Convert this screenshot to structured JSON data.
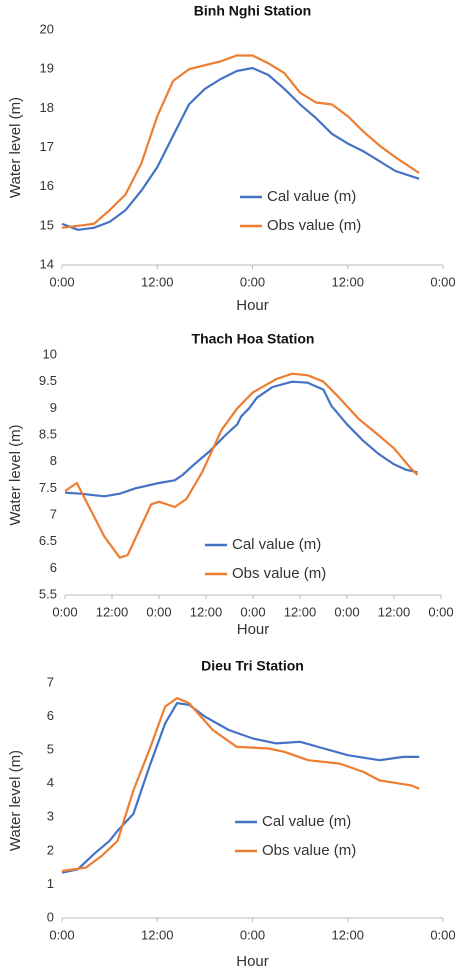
{
  "chart_data": [
    {
      "type": "line",
      "title": "Binh Nghi Station",
      "xlabel": "Hour",
      "ylabel": "Water level (m)",
      "xlim": [
        0,
        48
      ],
      "xticks": [
        {
          "value": 0,
          "label": "0:00"
        },
        {
          "value": 12,
          "label": "12:00"
        },
        {
          "value": 24,
          "label": "0:00"
        },
        {
          "value": 36,
          "label": "12:00"
        },
        {
          "value": 48,
          "label": "0:00"
        }
      ],
      "ylim": [
        14,
        20
      ],
      "yticks": [
        14,
        15,
        16,
        17,
        18,
        19,
        20
      ],
      "series": [
        {
          "name": "Cal value (m)",
          "color": "#4472c4",
          "x": [
            0,
            2,
            4,
            6,
            8,
            10,
            12,
            14,
            16,
            18,
            20,
            22,
            24,
            26,
            28,
            30,
            32,
            34,
            36,
            38,
            40,
            42,
            45
          ],
          "values": [
            15.05,
            14.9,
            14.95,
            15.1,
            15.4,
            15.9,
            16.5,
            17.3,
            18.1,
            18.5,
            18.75,
            18.95,
            19.03,
            18.85,
            18.5,
            18.1,
            17.75,
            17.35,
            17.1,
            16.9,
            16.65,
            16.4,
            16.2
          ]
        },
        {
          "name": "Obs value (m)",
          "color": "#ed7d31",
          "x": [
            0,
            2,
            4,
            6,
            8,
            10,
            12,
            14,
            16,
            18,
            20,
            22,
            24,
            26,
            28,
            30,
            32,
            34,
            36,
            38,
            40,
            42,
            45
          ],
          "values": [
            14.95,
            15.0,
            15.05,
            15.4,
            15.8,
            16.6,
            17.8,
            18.7,
            19.0,
            19.1,
            19.2,
            19.35,
            19.35,
            19.15,
            18.9,
            18.4,
            18.15,
            18.1,
            17.8,
            17.4,
            17.05,
            16.75,
            16.35
          ]
        }
      ]
    },
    {
      "type": "line",
      "title": "Thach Hoa Station",
      "xlabel": "Hour",
      "ylabel": "Water level (m)",
      "xlim": [
        0,
        96
      ],
      "xticks": [
        {
          "value": 0,
          "label": "0:00"
        },
        {
          "value": 12,
          "label": "12:00"
        },
        {
          "value": 24,
          "label": "0:00"
        },
        {
          "value": 36,
          "label": "12:00"
        },
        {
          "value": 48,
          "label": "0:00"
        },
        {
          "value": 60,
          "label": "12:00"
        },
        {
          "value": 72,
          "label": "0:00"
        },
        {
          "value": 84,
          "label": "12:00"
        },
        {
          "value": 96,
          "label": "0:00"
        }
      ],
      "ylim": [
        5.5,
        10
      ],
      "yticks": [
        5.5,
        6,
        6.5,
        7,
        7.5,
        8,
        8.5,
        9,
        9.5,
        10
      ],
      "series": [
        {
          "name": "Cal value (m)",
          "color": "#4472c4",
          "x": [
            0,
            4,
            10,
            14,
            18,
            24,
            28,
            30,
            33,
            37,
            41,
            44,
            45,
            47,
            49,
            53,
            58,
            62,
            66,
            68,
            72,
            76,
            80,
            84,
            87,
            90
          ],
          "values": [
            7.42,
            7.4,
            7.35,
            7.4,
            7.5,
            7.6,
            7.65,
            7.75,
            7.95,
            8.2,
            8.5,
            8.7,
            8.85,
            9.0,
            9.2,
            9.4,
            9.5,
            9.48,
            9.35,
            9.05,
            8.7,
            8.4,
            8.15,
            7.95,
            7.85,
            7.8
          ]
        },
        {
          "name": "Obs value (m)",
          "color": "#ed7d31",
          "x": [
            0,
            3,
            10,
            14,
            16,
            22,
            24,
            28,
            31,
            35,
            40,
            44,
            48,
            54,
            58,
            62,
            66,
            70,
            75,
            80,
            84,
            88,
            90
          ],
          "values": [
            7.45,
            7.6,
            6.6,
            6.2,
            6.25,
            7.2,
            7.25,
            7.15,
            7.3,
            7.8,
            8.6,
            9.0,
            9.3,
            9.55,
            9.65,
            9.62,
            9.5,
            9.2,
            8.8,
            8.5,
            8.25,
            7.9,
            7.75
          ]
        }
      ]
    },
    {
      "type": "line",
      "title": "Dieu Tri Station",
      "xlabel": "Hour",
      "ylabel": "Water level (m)",
      "xlim": [
        0,
        48
      ],
      "xticks": [
        {
          "value": 0,
          "label": "0:00"
        },
        {
          "value": 12,
          "label": "12:00"
        },
        {
          "value": 24,
          "label": "0:00"
        },
        {
          "value": 36,
          "label": "12:00"
        },
        {
          "value": 48,
          "label": "0:00"
        }
      ],
      "ylim": [
        0,
        7
      ],
      "yticks": [
        0,
        1,
        2,
        3,
        4,
        5,
        6,
        7
      ],
      "series": [
        {
          "name": "Cal value (m)",
          "color": "#4472c4",
          "x": [
            0,
            2,
            4,
            6,
            7,
            9,
            11,
            13,
            14.5,
            16,
            18,
            21,
            24,
            27,
            30,
            33,
            36,
            40,
            43,
            45
          ],
          "values": [
            1.35,
            1.45,
            1.9,
            2.3,
            2.6,
            3.1,
            4.5,
            5.8,
            6.4,
            6.35,
            6.0,
            5.6,
            5.35,
            5.2,
            5.25,
            5.05,
            4.85,
            4.7,
            4.8,
            4.8
          ]
        },
        {
          "name": "Obs value (m)",
          "color": "#ed7d31",
          "x": [
            0,
            3,
            5,
            7,
            9,
            11,
            13,
            14.5,
            16,
            19,
            22,
            26,
            28,
            31,
            35,
            38,
            40,
            44,
            45
          ],
          "values": [
            1.4,
            1.5,
            1.85,
            2.3,
            3.8,
            5.0,
            6.3,
            6.55,
            6.4,
            5.6,
            5.1,
            5.05,
            4.95,
            4.7,
            4.6,
            4.35,
            4.1,
            3.95,
            3.85
          ]
        }
      ]
    }
  ]
}
